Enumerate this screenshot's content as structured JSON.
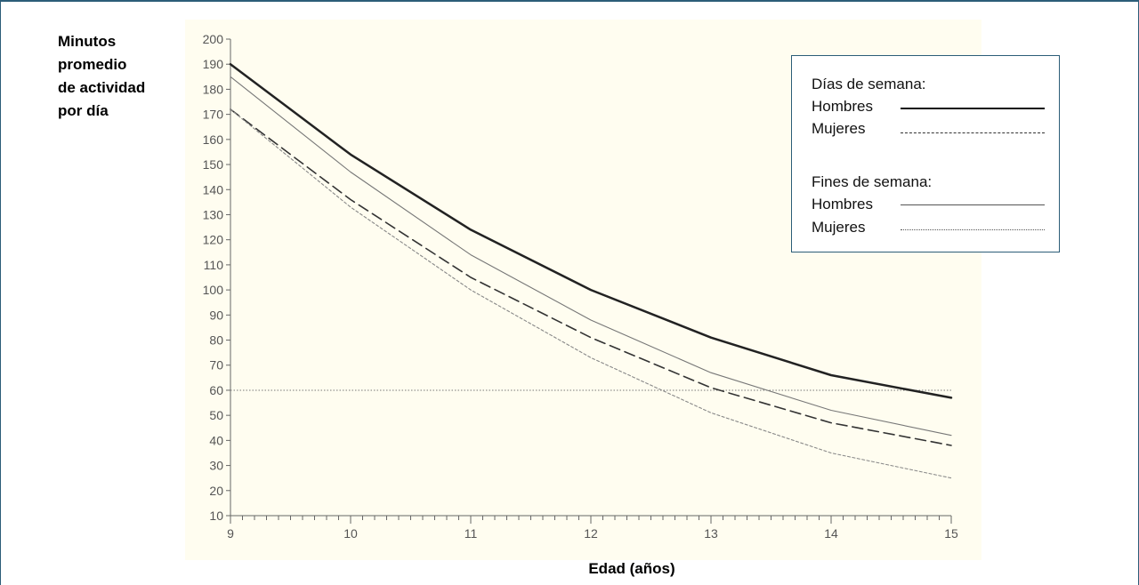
{
  "chart_data": {
    "type": "line",
    "ylabel_lines": [
      "Minutos",
      "promedio",
      "de actividad",
      "por día"
    ],
    "xlabel": "Edad (años)",
    "x": [
      9,
      10,
      11,
      12,
      13,
      14,
      15
    ],
    "xlim": [
      9,
      15
    ],
    "ylim": [
      10,
      200
    ],
    "ytick_step": 10,
    "reference_line_y": 60,
    "grid": false,
    "legend_placement": "top-right",
    "legend": {
      "group1_title": "Días de semana:",
      "group2_title": "Fines de semana:"
    },
    "series": [
      {
        "name": "Hombres",
        "group": "Días de semana:",
        "style": "solid-thick",
        "color": "#222222",
        "values": [
          190,
          154,
          124,
          100,
          81,
          66,
          57
        ]
      },
      {
        "name": "Mujeres",
        "group": "Días de semana:",
        "style": "dashed",
        "color": "#333333",
        "values": [
          172,
          136,
          105,
          81,
          61,
          47,
          38
        ]
      },
      {
        "name": "Hombres",
        "group": "Fines de semana:",
        "style": "solid-thin",
        "color": "#777777",
        "values": [
          185,
          147,
          114,
          88,
          67,
          52,
          42
        ]
      },
      {
        "name": "Mujeres",
        "group": "Fines de semana:",
        "style": "dotted",
        "color": "#888888",
        "values": [
          172,
          133,
          100,
          73,
          51,
          35,
          25
        ]
      }
    ],
    "colors": {
      "plot_background": "#fffdf0",
      "border": "#2c5d78"
    }
  }
}
